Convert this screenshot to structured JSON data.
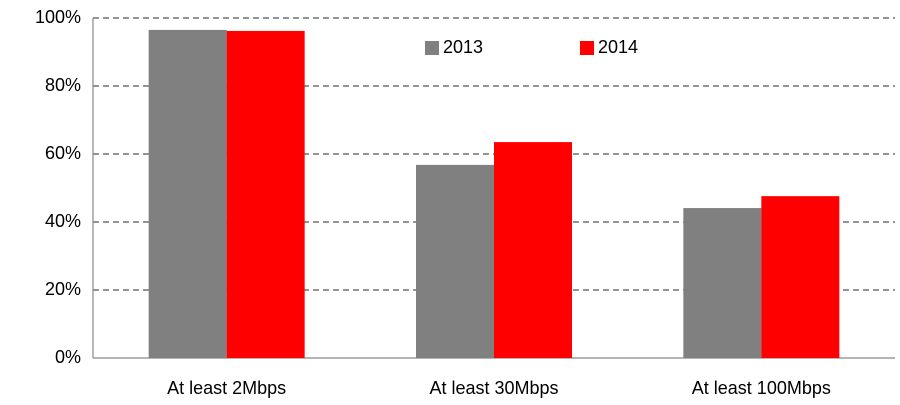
{
  "chart_data": {
    "type": "bar",
    "categories": [
      "At least 2Mbps",
      "At least 30Mbps",
      "At least 100Mbps"
    ],
    "series": [
      {
        "name": "2013",
        "color": "#808080",
        "values": [
          96.5,
          56.8,
          44.1
        ]
      },
      {
        "name": "2014",
        "color": "#ff0000",
        "values": [
          96.2,
          63.5,
          47.6
        ]
      }
    ],
    "ylim": [
      0,
      100
    ],
    "yticks": [
      {
        "value": 0,
        "label": "0%"
      },
      {
        "value": 20,
        "label": "20%"
      },
      {
        "value": 40,
        "label": "40%"
      },
      {
        "value": 60,
        "label": "60%"
      },
      {
        "value": 80,
        "label": "80%"
      },
      {
        "value": 100,
        "label": "100%"
      }
    ],
    "grid": true,
    "legend": "top"
  }
}
